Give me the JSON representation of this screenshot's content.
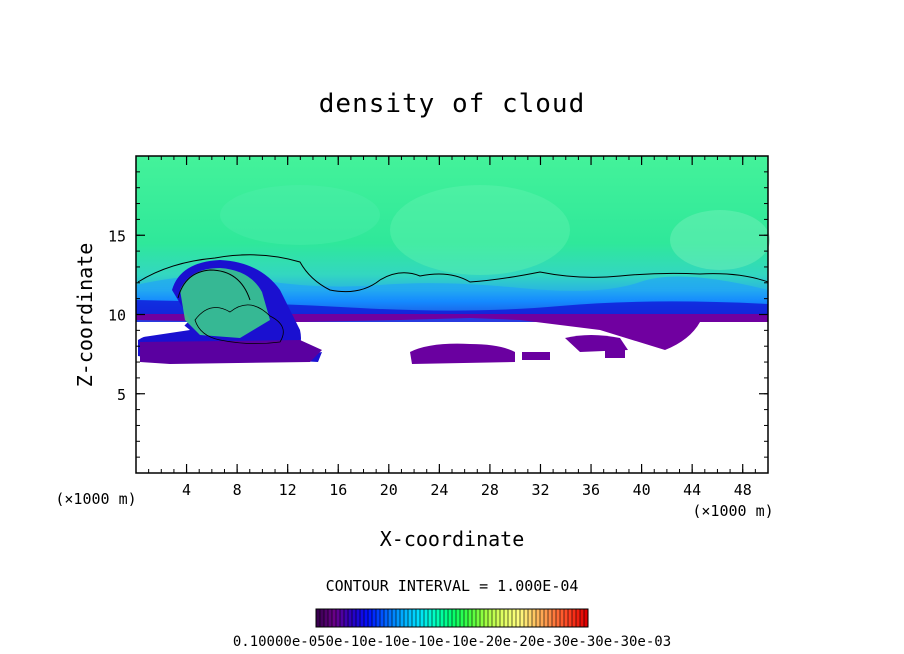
{
  "chart_data": {
    "type": "heatmap",
    "title": "density of cloud",
    "xlabel": "X-coordinate",
    "ylabel": "Z-coordinate",
    "x_unit_left": "(×1000 m)",
    "x_unit_right": "(×1000 m)",
    "xlim": [
      0,
      50
    ],
    "ylim": [
      0,
      20
    ],
    "x_ticks": [
      4,
      8,
      12,
      16,
      20,
      24,
      28,
      32,
      36,
      40,
      44,
      48
    ],
    "y_ticks": [
      5,
      10,
      15
    ],
    "contour_interval_text": "CONTOUR INTERVAL = 1.000E-04",
    "colorbar_label_text": "0.10000e-050e-10e-10e-10e-10e-20e-20e-30e-30e-30e-03",
    "colorbar_colors": [
      "#3a0050",
      "#6a008a",
      "#2a00c0",
      "#0010ff",
      "#0060ff",
      "#00a8ff",
      "#00e0ff",
      "#00ffc0",
      "#00ff70",
      "#40ff40",
      "#a0ff40",
      "#e0ff60",
      "#ffff80",
      "#ffc060",
      "#ff8040",
      "#ff4020",
      "#e00000"
    ],
    "description": "2D field: cloud density, high layer (green) above ~11 km, blue/purple transition near 10-11 km, empty below ~7 km"
  }
}
